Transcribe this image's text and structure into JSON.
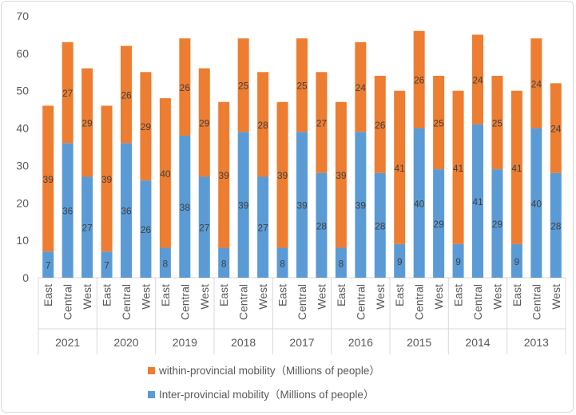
{
  "chart_data": {
    "type": "bar",
    "stacked": true,
    "title": "",
    "xlabel": "",
    "ylabel": "",
    "ylim": [
      0,
      70
    ],
    "yticks": [
      0,
      10,
      20,
      30,
      40,
      50,
      60,
      70
    ],
    "grid": false,
    "legend_position": "bottom",
    "groups": [
      "2021",
      "2020",
      "2019",
      "2018",
      "2017",
      "2016",
      "2015",
      "2014",
      "2013"
    ],
    "subcategories": [
      "East",
      "Central",
      "West"
    ],
    "series": [
      {
        "name": "Inter-provincial mobility（Millions of people）",
        "color": "#5b9bd5",
        "values": [
          7,
          36,
          27,
          7,
          36,
          26,
          8,
          38,
          27,
          8,
          39,
          27,
          8,
          39,
          28,
          8,
          39,
          28,
          9,
          40,
          29,
          9,
          41,
          29,
          9,
          40,
          28
        ]
      },
      {
        "name": "within-provincial mobility（Millions of people）",
        "color": "#ed7d31",
        "values": [
          39,
          27,
          29,
          39,
          26,
          29,
          40,
          26,
          29,
          39,
          25,
          28,
          39,
          25,
          27,
          39,
          24,
          26,
          41,
          26,
          25,
          41,
          24,
          25,
          41,
          24,
          24
        ]
      }
    ]
  }
}
